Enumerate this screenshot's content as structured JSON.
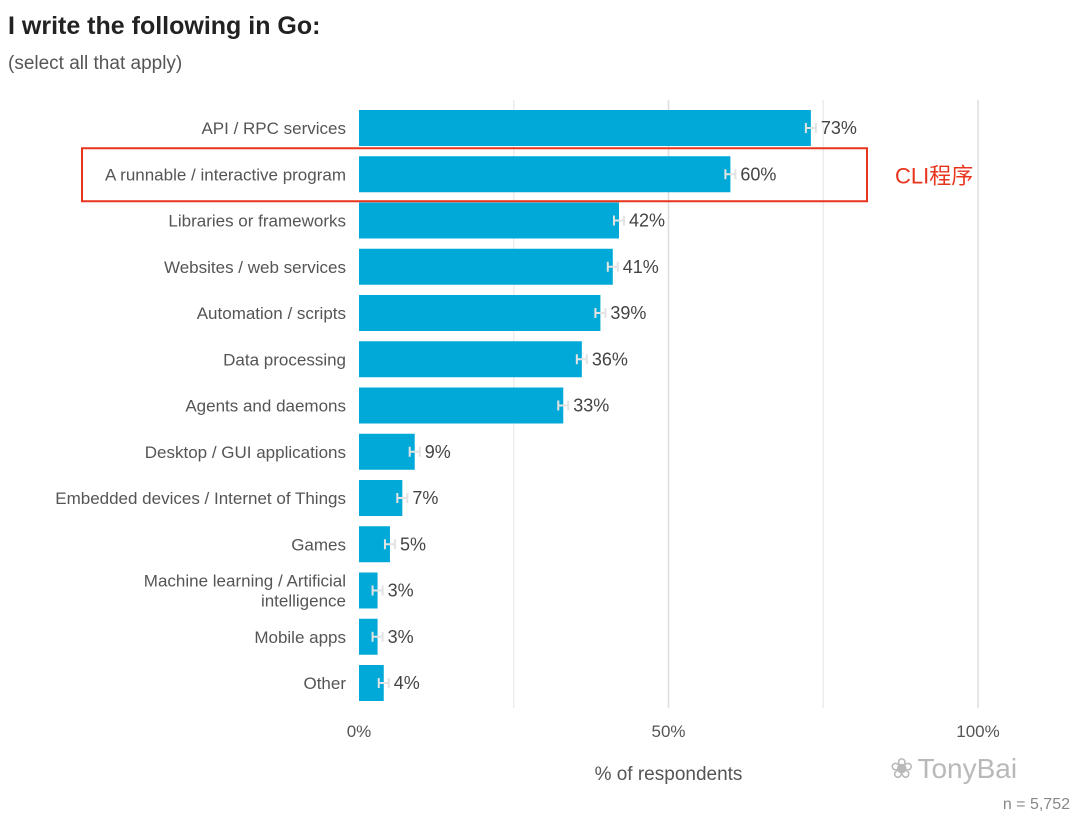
{
  "chart_data": {
    "type": "bar",
    "orientation": "horizontal",
    "title": "I write the following in Go:",
    "subtitle": "(select all that apply)",
    "categories": [
      "API / RPC services",
      "A runnable / interactive program",
      "Libraries or frameworks",
      "Websites / web services",
      "Automation / scripts",
      "Data processing",
      "Agents and daemons",
      "Desktop / GUI applications",
      "Embedded devices / Internet of Things",
      "Games",
      "Machine learning / Artificial intelligence",
      "Mobile apps",
      "Other"
    ],
    "values": [
      73,
      60,
      42,
      41,
      39,
      36,
      33,
      9,
      7,
      5,
      3,
      3,
      4
    ],
    "value_labels": [
      "73%",
      "60%",
      "42%",
      "41%",
      "39%",
      "36%",
      "33%",
      "9%",
      "7%",
      "5%",
      "3%",
      "3%",
      "4%"
    ],
    "xlim": [
      0,
      100
    ],
    "xticks": [
      "0%",
      "50%",
      "100%"
    ],
    "xlabel": "% of respondents",
    "grid": true,
    "bar_color": "#00a9d8",
    "highlight": {
      "category_index": 1,
      "label": "CLI程序",
      "color": "#e8341c"
    }
  },
  "footnote": "n =  5,752",
  "watermark": "TonyBai"
}
